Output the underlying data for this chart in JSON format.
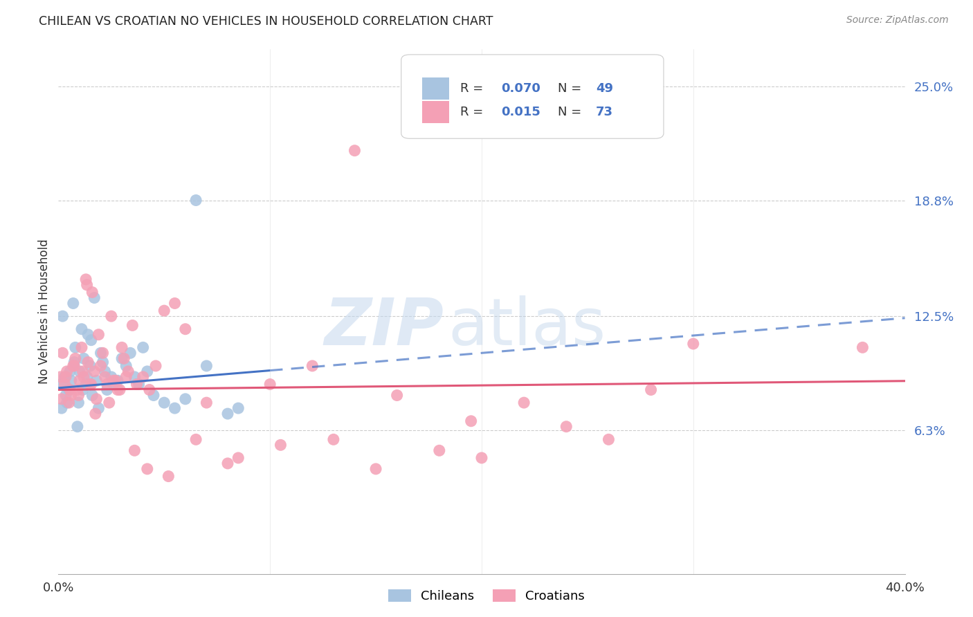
{
  "title": "CHILEAN VS CROATIAN NO VEHICLES IN HOUSEHOLD CORRELATION CHART",
  "source": "Source: ZipAtlas.com",
  "ylabel": "No Vehicles in Household",
  "ytick_values": [
    6.3,
    12.5,
    18.8,
    25.0
  ],
  "xlim": [
    0.0,
    40.0
  ],
  "ylim": [
    -1.5,
    27.0
  ],
  "chilean_color": "#a8c4e0",
  "croatian_color": "#f4a0b5",
  "chilean_line_color": "#4472c4",
  "croatian_line_color": "#e05878",
  "chilean_R": 0.07,
  "chilean_N": 49,
  "croatian_R": 0.015,
  "croatian_N": 73,
  "background_color": "#ffffff",
  "grid_color": "#cccccc",
  "watermark_zip": "ZIP",
  "watermark_atlas": "atlas",
  "chile_intercept": 8.6,
  "chile_slope": 0.095,
  "croat_intercept": 8.5,
  "croat_slope": 0.012,
  "chilean_scatter_x": [
    0.1,
    0.2,
    0.3,
    0.4,
    0.5,
    0.6,
    0.7,
    0.8,
    0.9,
    1.0,
    1.1,
    1.2,
    1.3,
    1.4,
    1.5,
    1.6,
    1.7,
    1.8,
    1.9,
    2.0,
    2.1,
    2.2,
    2.3,
    2.5,
    2.6,
    2.8,
    3.0,
    3.2,
    3.4,
    3.6,
    3.8,
    4.0,
    4.2,
    4.5,
    5.0,
    5.5,
    6.0,
    6.5,
    7.0,
    8.0,
    0.15,
    0.35,
    0.55,
    0.75,
    0.95,
    1.15,
    1.35,
    1.55,
    8.5
  ],
  "chilean_scatter_y": [
    8.8,
    12.5,
    9.2,
    7.8,
    8.5,
    9.0,
    13.2,
    10.8,
    6.5,
    9.5,
    11.8,
    10.2,
    8.8,
    11.5,
    9.8,
    8.2,
    13.5,
    9.0,
    7.5,
    10.5,
    10.0,
    9.5,
    8.5,
    9.2,
    8.8,
    9.0,
    10.2,
    9.8,
    10.5,
    9.2,
    8.8,
    10.8,
    9.5,
    8.2,
    7.8,
    7.5,
    8.0,
    18.8,
    9.8,
    7.2,
    7.5,
    8.2,
    9.5,
    10.0,
    7.8,
    8.5,
    9.2,
    11.2,
    7.5
  ],
  "croatian_scatter_x": [
    0.1,
    0.2,
    0.3,
    0.4,
    0.5,
    0.6,
    0.7,
    0.8,
    0.9,
    1.0,
    1.1,
    1.2,
    1.3,
    1.4,
    1.5,
    1.6,
    1.7,
    1.8,
    1.9,
    2.0,
    2.1,
    2.2,
    2.3,
    2.5,
    2.7,
    2.9,
    3.1,
    3.3,
    3.5,
    3.7,
    4.0,
    4.3,
    4.6,
    5.0,
    5.5,
    6.0,
    7.0,
    8.5,
    10.0,
    12.0,
    14.0,
    16.0,
    18.0,
    20.0,
    22.0,
    24.0,
    26.0,
    28.0,
    30.0,
    0.15,
    0.35,
    0.55,
    0.75,
    0.95,
    1.15,
    1.35,
    1.55,
    1.75,
    2.4,
    2.6,
    2.8,
    3.0,
    3.2,
    3.6,
    4.2,
    5.2,
    6.5,
    8.0,
    10.5,
    13.0,
    15.0,
    19.5,
    38.0
  ],
  "croatian_scatter_y": [
    9.2,
    10.5,
    8.8,
    9.5,
    7.8,
    8.2,
    9.8,
    10.2,
    8.5,
    9.0,
    10.8,
    9.2,
    14.5,
    10.0,
    8.8,
    13.8,
    9.5,
    8.0,
    11.5,
    9.8,
    10.5,
    9.2,
    8.8,
    12.5,
    9.0,
    8.5,
    10.2,
    9.5,
    12.0,
    8.8,
    9.2,
    8.5,
    9.8,
    12.8,
    13.2,
    11.8,
    7.8,
    4.8,
    8.8,
    9.8,
    21.5,
    8.2,
    5.2,
    4.8,
    7.8,
    6.5,
    5.8,
    8.5,
    11.0,
    8.0,
    9.2,
    8.5,
    9.8,
    8.2,
    9.5,
    14.2,
    8.8,
    7.2,
    7.8,
    9.0,
    8.5,
    10.8,
    9.2,
    5.2,
    4.2,
    3.8,
    5.8,
    4.5,
    5.5,
    5.8,
    4.2,
    6.8,
    10.8
  ]
}
